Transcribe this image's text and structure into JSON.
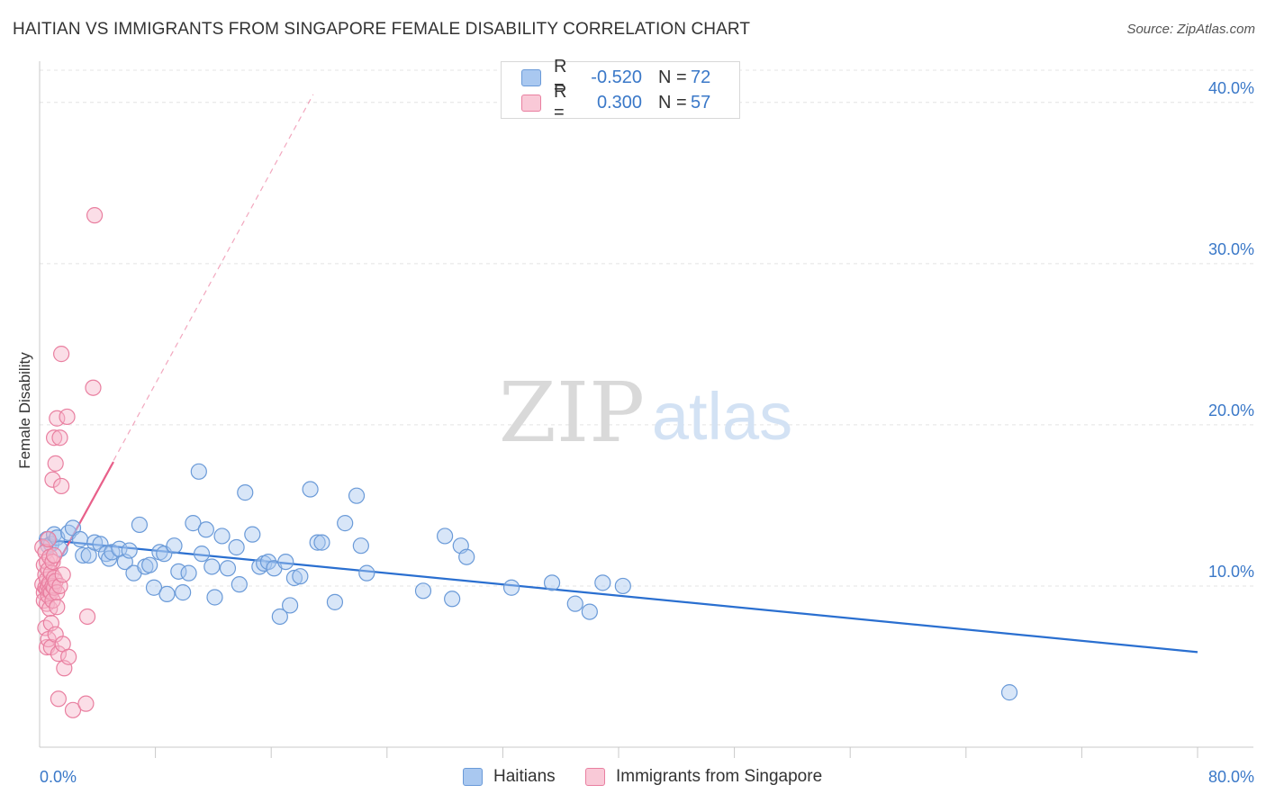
{
  "header": {
    "title": "HAITIAN VS IMMIGRANTS FROM SINGAPORE FEMALE DISABILITY CORRELATION CHART",
    "source": "Source: ZipAtlas.com"
  },
  "watermark": {
    "zip": "ZIP",
    "atlas": "atlas"
  },
  "legend": {
    "series1": {
      "r_label": "R =",
      "r_value": "-0.520",
      "n_label": "N =",
      "n_value": "72"
    },
    "series2": {
      "r_label": "R =",
      "r_value": "0.300",
      "n_label": "N =",
      "n_value": "57"
    }
  },
  "bottom_legend": {
    "series1": "Haitians",
    "series2": "Immigrants from Singapore"
  },
  "colors": {
    "blue_fill": "#a9c8f0",
    "blue_stroke": "#6a9ad8",
    "blue_line": "#2a6fd0",
    "pink_fill": "#f6b6c9",
    "pink_stroke": "#e97fa0",
    "pink_line": "#e8608a",
    "axis_text": "#3a78c8",
    "grid": "#e4e4e4"
  },
  "chart_data": {
    "type": "scatter",
    "title": "HAITIAN VS IMMIGRANTS FROM SINGAPORE FEMALE DISABILITY CORRELATION CHART",
    "xlabel": "",
    "ylabel": "Female Disability",
    "xlim": [
      0,
      80
    ],
    "ylim": [
      0,
      42
    ],
    "x_tick_labels": [
      "0.0%",
      "80.0%"
    ],
    "y_ticks": [
      10,
      20,
      30,
      40
    ],
    "y_tick_labels": [
      "10.0%",
      "20.0%",
      "30.0%",
      "40.0%"
    ],
    "series": [
      {
        "name": "Haitians",
        "r": -0.52,
        "n": 72,
        "trend": {
          "x": [
            0,
            80
          ],
          "y": [
            12.9,
            5.9
          ]
        },
        "points": [
          [
            0.5,
            12.9
          ],
          [
            0.6,
            12.5
          ],
          [
            0.8,
            12.6
          ],
          [
            1.0,
            13.2
          ],
          [
            1.2,
            13.0
          ],
          [
            1.4,
            12.3
          ],
          [
            2.0,
            13.3
          ],
          [
            2.3,
            13.6
          ],
          [
            2.8,
            12.9
          ],
          [
            3.0,
            11.9
          ],
          [
            3.4,
            11.9
          ],
          [
            3.8,
            12.7
          ],
          [
            4.2,
            12.6
          ],
          [
            4.6,
            12.0
          ],
          [
            4.8,
            11.7
          ],
          [
            5.0,
            12.1
          ],
          [
            5.5,
            12.3
          ],
          [
            5.9,
            11.5
          ],
          [
            6.2,
            12.2
          ],
          [
            6.5,
            10.8
          ],
          [
            6.9,
            13.8
          ],
          [
            7.3,
            11.2
          ],
          [
            7.6,
            11.3
          ],
          [
            7.9,
            9.9
          ],
          [
            8.3,
            12.1
          ],
          [
            8.6,
            12.0
          ],
          [
            8.8,
            9.5
          ],
          [
            9.3,
            12.5
          ],
          [
            9.6,
            10.9
          ],
          [
            9.9,
            9.6
          ],
          [
            10.3,
            10.8
          ],
          [
            10.6,
            13.9
          ],
          [
            11.0,
            17.1
          ],
          [
            11.2,
            12.0
          ],
          [
            11.5,
            13.5
          ],
          [
            11.9,
            11.2
          ],
          [
            12.1,
            9.3
          ],
          [
            12.6,
            13.1
          ],
          [
            13.0,
            11.1
          ],
          [
            13.6,
            12.4
          ],
          [
            13.8,
            10.1
          ],
          [
            14.2,
            15.8
          ],
          [
            14.7,
            13.2
          ],
          [
            15.2,
            11.2
          ],
          [
            15.5,
            11.4
          ],
          [
            15.8,
            11.5
          ],
          [
            16.2,
            11.1
          ],
          [
            16.6,
            8.1
          ],
          [
            17.0,
            11.5
          ],
          [
            17.3,
            8.8
          ],
          [
            17.6,
            10.5
          ],
          [
            18.0,
            10.6
          ],
          [
            18.7,
            16.0
          ],
          [
            19.2,
            12.7
          ],
          [
            19.5,
            12.7
          ],
          [
            20.4,
            9.0
          ],
          [
            21.1,
            13.9
          ],
          [
            21.9,
            15.6
          ],
          [
            22.2,
            12.5
          ],
          [
            22.6,
            10.8
          ],
          [
            26.5,
            9.7
          ],
          [
            28.0,
            13.1
          ],
          [
            28.5,
            9.2
          ],
          [
            29.1,
            12.5
          ],
          [
            29.5,
            11.8
          ],
          [
            32.6,
            9.9
          ],
          [
            35.4,
            10.2
          ],
          [
            37.0,
            8.9
          ],
          [
            38.0,
            8.4
          ],
          [
            38.9,
            10.2
          ],
          [
            40.3,
            10.0
          ],
          [
            67.0,
            3.4
          ]
        ]
      },
      {
        "name": "Immigrants from Singapore",
        "r": 0.3,
        "n": 57,
        "trend": {
          "x": [
            0.2,
            5.1
          ],
          "y": [
            9.7,
            17.7
          ]
        },
        "trend_extended": {
          "x": [
            0.2,
            18.9
          ],
          "y": [
            9.7,
            40.5
          ]
        },
        "points": [
          [
            0.2,
            12.4
          ],
          [
            0.2,
            10.1
          ],
          [
            0.3,
            11.3
          ],
          [
            0.3,
            9.6
          ],
          [
            0.3,
            9.1
          ],
          [
            0.4,
            12.1
          ],
          [
            0.4,
            10.7
          ],
          [
            0.4,
            9.9
          ],
          [
            0.4,
            7.4
          ],
          [
            0.5,
            11.5
          ],
          [
            0.5,
            10.4
          ],
          [
            0.5,
            9.8
          ],
          [
            0.5,
            8.9
          ],
          [
            0.5,
            6.2
          ],
          [
            0.6,
            12.9
          ],
          [
            0.6,
            11.0
          ],
          [
            0.6,
            10.0
          ],
          [
            0.6,
            9.4
          ],
          [
            0.6,
            6.7
          ],
          [
            0.7,
            11.8
          ],
          [
            0.7,
            10.2
          ],
          [
            0.7,
            9.7
          ],
          [
            0.7,
            8.6
          ],
          [
            0.8,
            10.8
          ],
          [
            0.8,
            9.6
          ],
          [
            0.8,
            7.7
          ],
          [
            0.8,
            6.2
          ],
          [
            0.9,
            16.6
          ],
          [
            0.9,
            11.5
          ],
          [
            0.9,
            10.0
          ],
          [
            0.9,
            9.1
          ],
          [
            1.0,
            19.2
          ],
          [
            1.0,
            11.9
          ],
          [
            1.0,
            10.5
          ],
          [
            1.0,
            9.9
          ],
          [
            1.1,
            17.6
          ],
          [
            1.1,
            10.3
          ],
          [
            1.1,
            7.0
          ],
          [
            1.2,
            20.4
          ],
          [
            1.2,
            9.6
          ],
          [
            1.2,
            8.7
          ],
          [
            1.3,
            5.8
          ],
          [
            1.3,
            3.0
          ],
          [
            1.4,
            19.2
          ],
          [
            1.4,
            10.0
          ],
          [
            1.5,
            24.4
          ],
          [
            1.5,
            16.2
          ],
          [
            1.6,
            10.7
          ],
          [
            1.6,
            6.4
          ],
          [
            1.7,
            4.9
          ],
          [
            1.9,
            20.5
          ],
          [
            2.0,
            5.6
          ],
          [
            2.3,
            2.3
          ],
          [
            3.2,
            2.7
          ],
          [
            3.3,
            8.1
          ],
          [
            3.7,
            22.3
          ],
          [
            3.8,
            33.0
          ]
        ]
      }
    ]
  }
}
